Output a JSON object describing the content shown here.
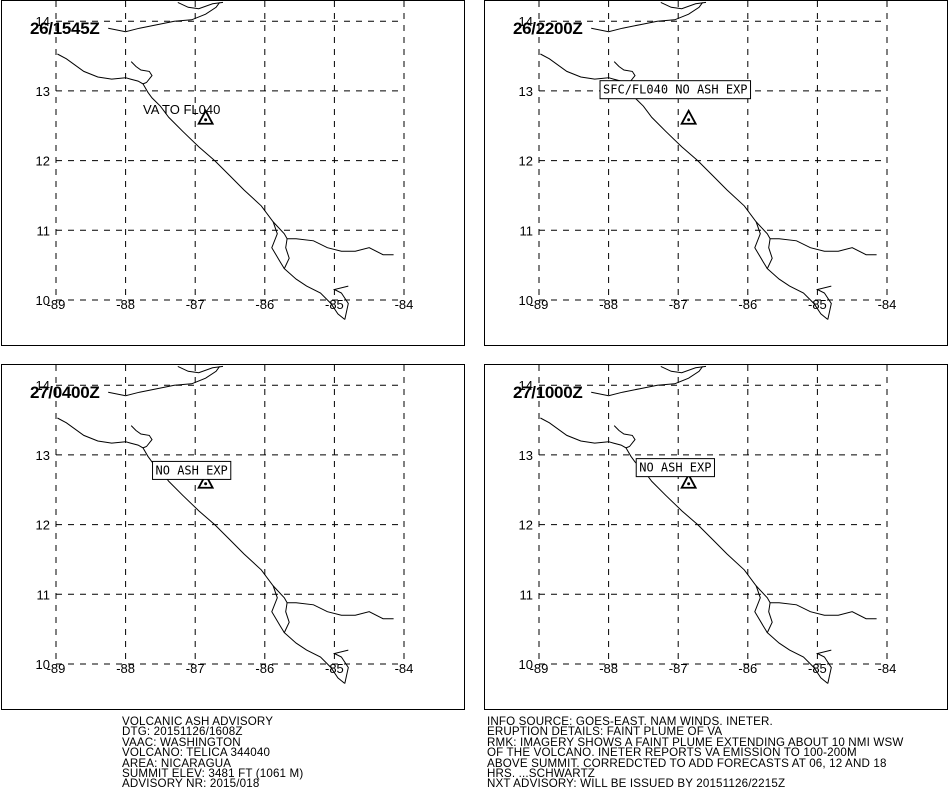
{
  "panels": [
    {
      "time": "26/1545Z",
      "label": "VA TO FL040",
      "label_boxed": false
    },
    {
      "time": "26/2200Z",
      "label": "SFC/FL040 NO ASH EXP",
      "label_boxed": true
    },
    {
      "time": "27/0400Z",
      "label": "NO ASH EXP",
      "label_boxed": true
    },
    {
      "time": "27/1000Z",
      "label": "NO ASH EXP",
      "label_boxed": true
    }
  ],
  "map": {
    "lat_labels": [
      "14",
      "13",
      "12",
      "11",
      "10"
    ],
    "lon_labels": [
      "-89",
      "-88",
      "-87",
      "-86",
      "-85",
      "-84"
    ],
    "grid": "dashed",
    "volcano_symbol": "volcano-triangle-icon",
    "line_color": "#000000",
    "background": "#ffffff"
  },
  "advisory_left": [
    "VOLCANIC ASH ADVISORY",
    "DTG: 20151126/1608Z",
    "VAAC: WASHINGTON",
    "VOLCANO: TELICA 344040",
    "AREA: NICARAGUA",
    "SUMMIT ELEV: 3481 FT (1061 M)",
    "ADVISORY NR: 2015/018"
  ],
  "advisory_right": [
    "INFO SOURCE: GOES-EAST. NAM WINDS. INETER.",
    "ERUPTION DETAILS: FAINT PLUME OF VA",
    "RMK: IMAGERY SHOWS A FAINT PLUME EXTENDING ABOUT 10 NMI WSW",
    "OF THE VOLCANO. INETER REPORTS VA EMISSION TO 100-200M",
    "ABOVE SUMMIT. CORREDCTED TO ADD FORECASTS AT 06, 12 AND 18",
    "HRS. ...SCHWARTZ",
    "NXT ADVISORY: WILL BE ISSUED BY 20151126/2215Z"
  ]
}
